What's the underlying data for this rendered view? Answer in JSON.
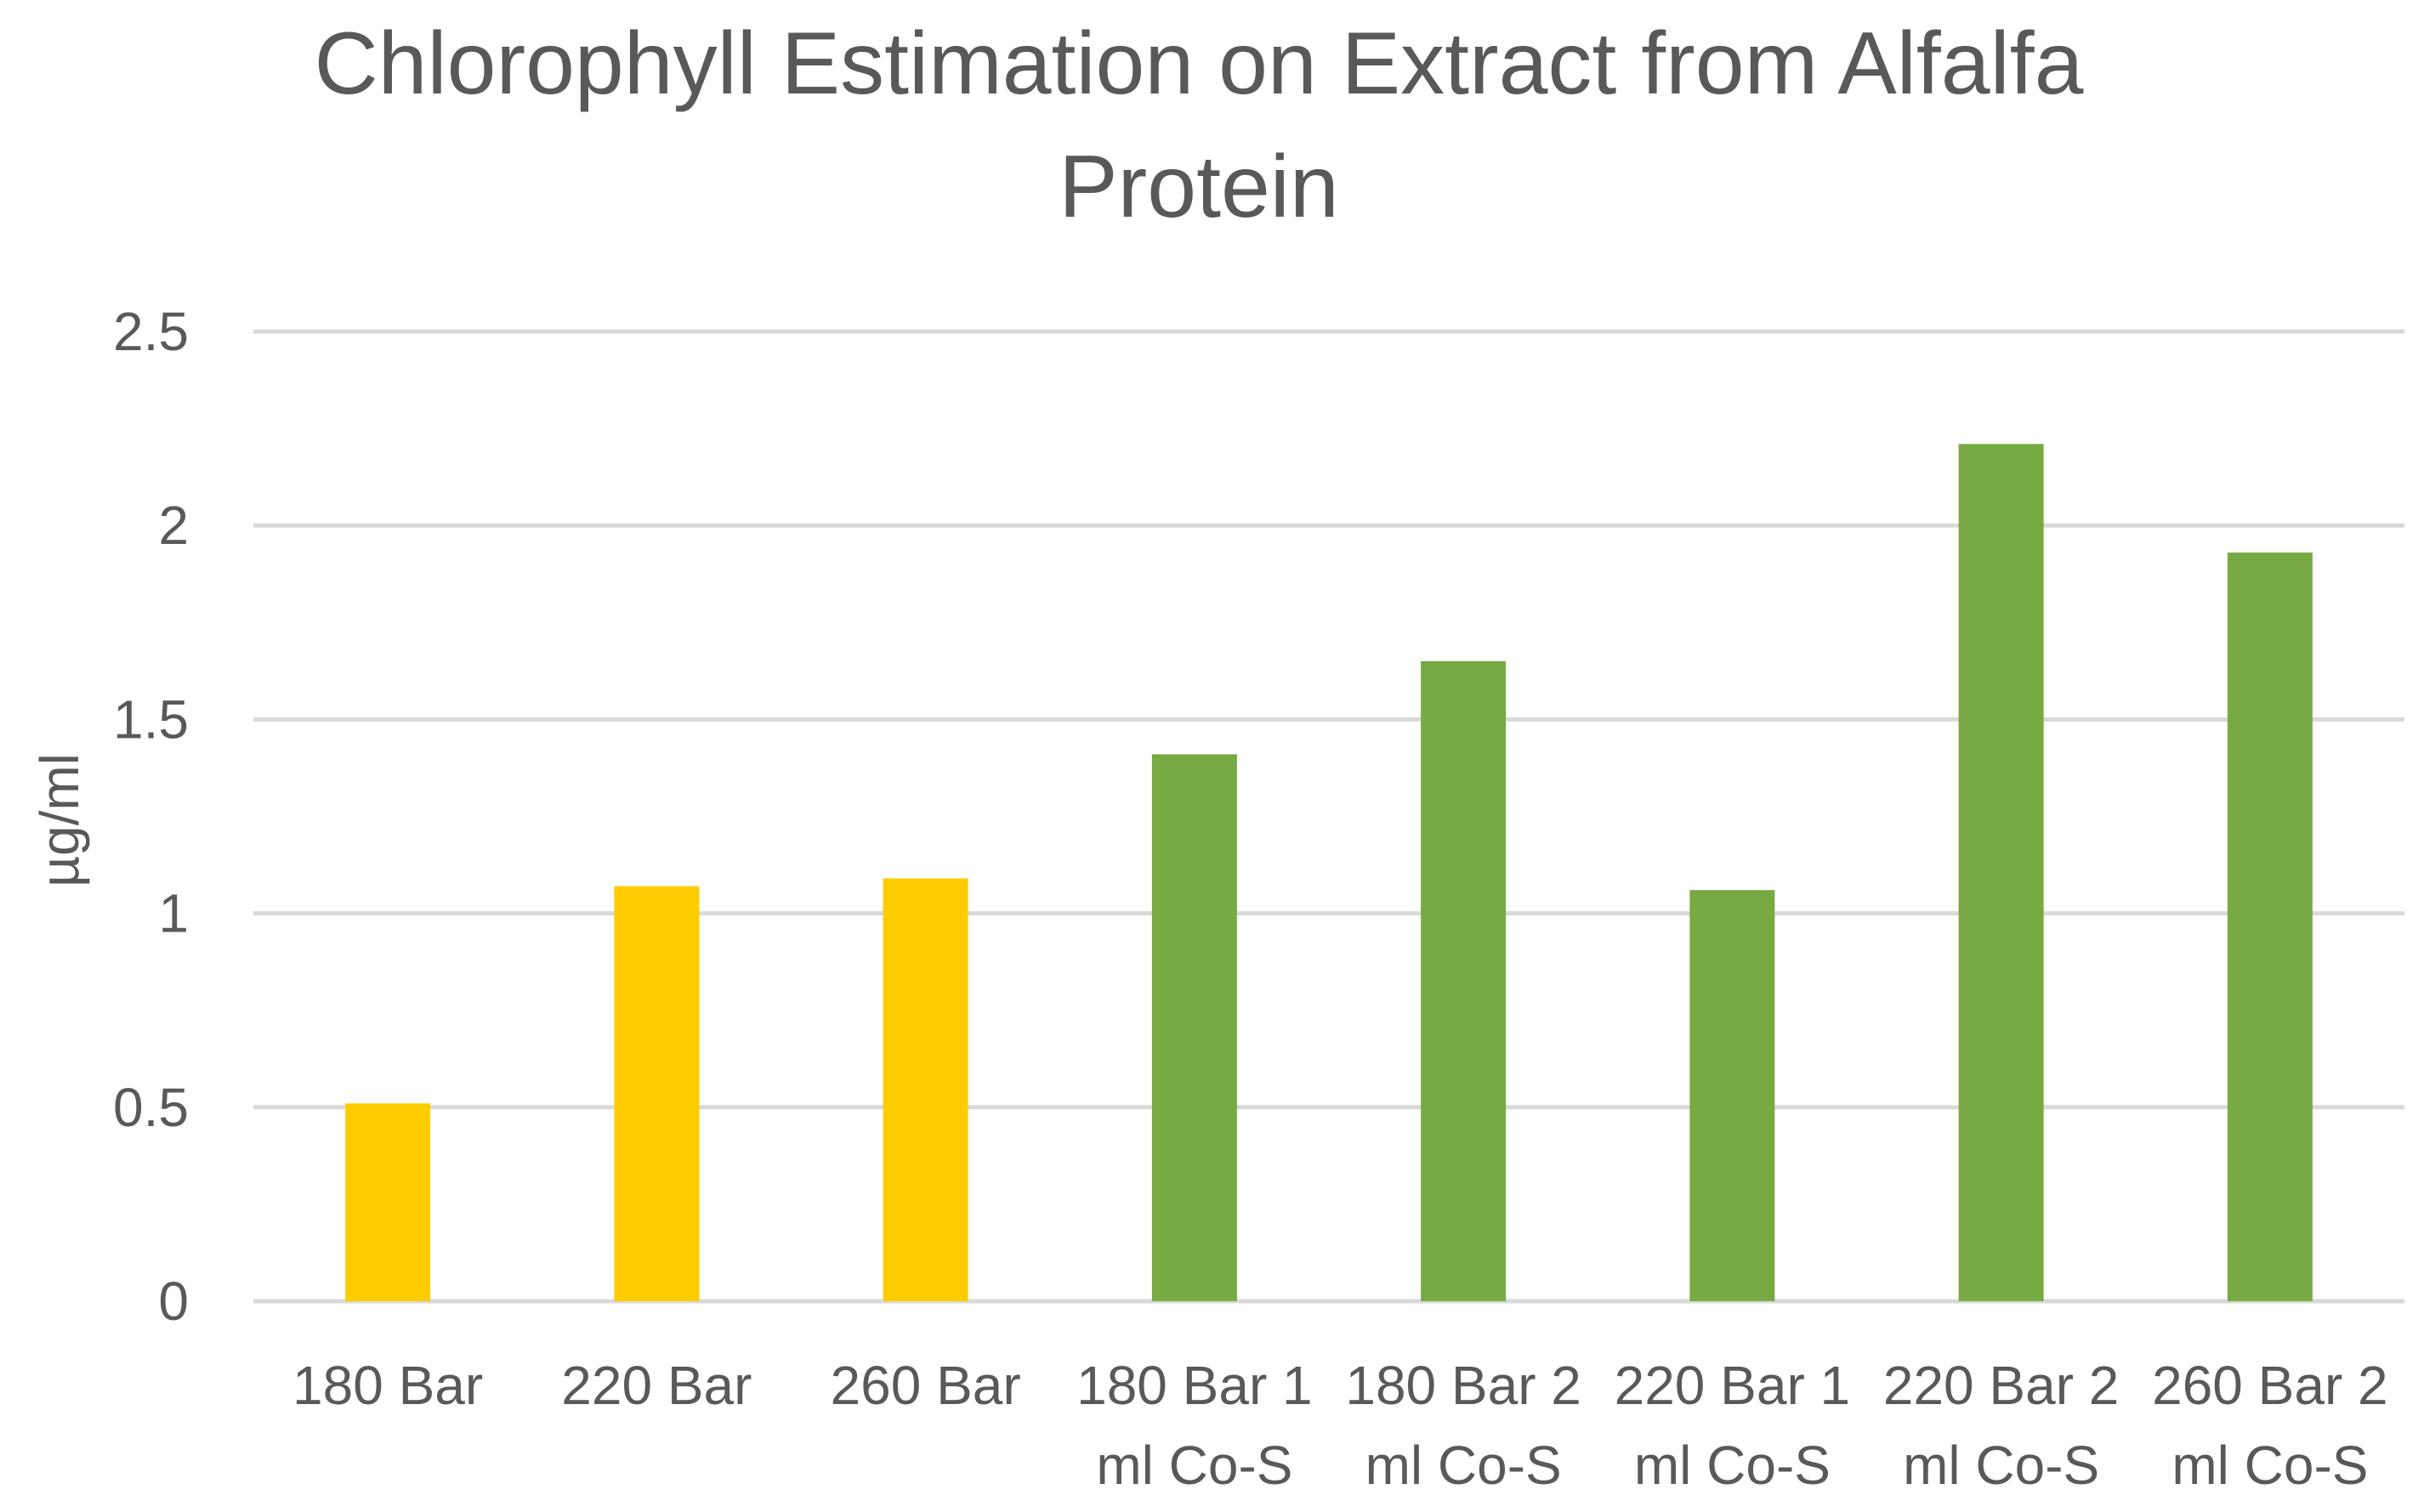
{
  "chart_data": {
    "type": "bar",
    "title": "Chlorophyll Estimation on Extract from Alfalfa Protein",
    "title_lines": [
      "Chlorophyll Estimation on Extract from Alfalfa",
      "Protein"
    ],
    "xlabel": "",
    "ylabel": "µg/ml",
    "ylim": [
      0,
      2.5
    ],
    "yticks": [
      "0",
      "0.5",
      "1",
      "1.5",
      "2",
      "2.5"
    ],
    "grid": true,
    "categories": [
      "180 Bar",
      "220 Bar",
      "260 Bar",
      "180 Bar 1 ml Co-S",
      "180 Bar 2 ml Co-S",
      "220 Bar 1 ml Co-S",
      "220 Bar 2 ml Co-S",
      "260 Bar 2 ml Co-S"
    ],
    "category_lines": [
      [
        "180 Bar"
      ],
      [
        "220 Bar"
      ],
      [
        "260 Bar"
      ],
      [
        "180 Bar 1",
        "ml Co-S"
      ],
      [
        "180 Bar 2",
        "ml Co-S"
      ],
      [
        "220 Bar 1",
        "ml Co-S"
      ],
      [
        "220 Bar 2",
        "ml Co-S"
      ],
      [
        "260 Bar 2",
        "ml Co-S"
      ]
    ],
    "values": [
      0.51,
      1.07,
      1.09,
      1.41,
      1.65,
      1.06,
      2.21,
      1.93
    ],
    "colors": [
      "#FFCC00",
      "#FFCC00",
      "#FFCC00",
      "#77AA43",
      "#77AA43",
      "#77AA43",
      "#77AA43",
      "#77AA43"
    ]
  }
}
